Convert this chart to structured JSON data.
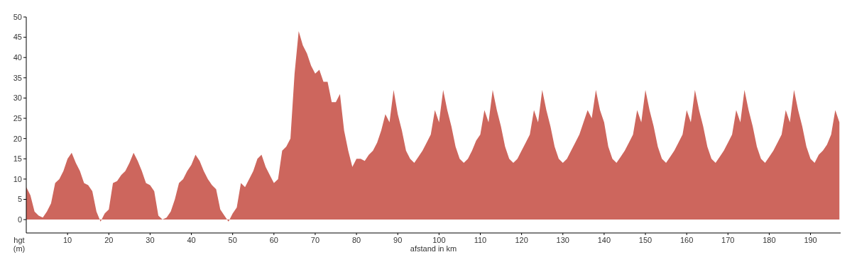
{
  "chart_data": {
    "type": "area",
    "xlabel": "afstand in km",
    "ylabel": "hgt (m)",
    "xlim": [
      0,
      197.3
    ],
    "ylim": [
      -3.3,
      50
    ],
    "xticks": [
      10,
      20,
      30,
      40,
      50,
      60,
      70,
      80,
      90,
      100,
      110,
      120,
      130,
      140,
      150,
      160,
      170,
      180,
      190
    ],
    "yticks": [
      0,
      5,
      10,
      15,
      20,
      25,
      30,
      35,
      40,
      45,
      50
    ],
    "grid": false,
    "series": [
      {
        "color": "#cd665d",
        "x": [
          0,
          1,
          2,
          3,
          4,
          5,
          6,
          7,
          8,
          9,
          10,
          11,
          12,
          13,
          14,
          15,
          16,
          17,
          18,
          19,
          20,
          21,
          22,
          23,
          24,
          25,
          26,
          27,
          28,
          29,
          30,
          31,
          32,
          33,
          34,
          35,
          36,
          37,
          38,
          39,
          40,
          41,
          42,
          43,
          44,
          45,
          46,
          47,
          48,
          49,
          50,
          51,
          52,
          53,
          54,
          55,
          56,
          57,
          58,
          59,
          60,
          61,
          62,
          63,
          64,
          65,
          66,
          67,
          68,
          69,
          70,
          71,
          72,
          73,
          74,
          75,
          76,
          77,
          78,
          79,
          80,
          81,
          82,
          83,
          84,
          85,
          86,
          87,
          88,
          89,
          90,
          91,
          92,
          93,
          94,
          95,
          96,
          97,
          98,
          99,
          100,
          101,
          102,
          103,
          104,
          105,
          106,
          107,
          108,
          109,
          110,
          111,
          112,
          113,
          114,
          115,
          116,
          117,
          118,
          119,
          120,
          121,
          122,
          123,
          124,
          125,
          126,
          127,
          128,
          129,
          130,
          131,
          132,
          133,
          134,
          135,
          136,
          137,
          138,
          139,
          140,
          141,
          142,
          143,
          144,
          145,
          146,
          147,
          148,
          149,
          150,
          151,
          152,
          153,
          154,
          155,
          156,
          157,
          158,
          159,
          160,
          161,
          162,
          163,
          164,
          165,
          166,
          167,
          168,
          169,
          170,
          171,
          172,
          173,
          174,
          175,
          176,
          177,
          178,
          179,
          180,
          181,
          182,
          183,
          184,
          185,
          186,
          187,
          188,
          189,
          190,
          191,
          192,
          193,
          194,
          195,
          196,
          197
        ],
        "values": [
          8,
          6,
          2,
          1,
          0.5,
          2,
          4,
          9,
          10,
          12,
          15,
          16.5,
          14,
          12,
          9,
          8.5,
          7,
          2,
          -0.5,
          1.5,
          2.5,
          9,
          9.5,
          11,
          12,
          14,
          16.5,
          14.5,
          12,
          9,
          8.5,
          7,
          1,
          0,
          0.5,
          2,
          5,
          9,
          10,
          12,
          13.5,
          16,
          14.5,
          12,
          10,
          8.5,
          7.5,
          2.5,
          1,
          -0.5,
          1.5,
          3,
          9,
          8,
          10,
          12,
          15,
          16,
          13,
          11,
          9,
          10,
          17,
          18,
          20,
          36,
          46.5,
          43,
          41,
          38,
          36,
          37,
          34,
          34,
          29,
          29,
          31,
          22,
          17,
          13,
          15,
          15,
          14.5,
          16,
          17,
          19,
          22,
          26,
          24,
          32,
          26,
          22,
          17,
          15,
          14,
          15.5,
          17,
          19,
          21,
          27,
          24,
          32,
          27,
          23,
          18,
          15,
          14,
          15,
          17,
          19.5,
          21,
          27,
          24,
          32,
          27,
          23,
          18,
          15,
          14,
          15,
          17,
          19,
          21,
          27,
          24,
          32,
          27,
          23,
          18,
          15,
          14,
          15,
          17,
          19,
          21,
          24,
          27,
          25,
          32,
          27,
          24,
          18,
          15,
          14,
          15.5,
          17,
          19,
          21,
          27,
          24,
          32,
          27,
          23,
          18,
          15,
          14,
          15.5,
          17,
          19,
          21,
          27,
          24,
          32,
          27,
          23,
          18,
          15,
          14,
          15.5,
          17,
          19,
          21,
          27,
          24,
          32,
          27,
          23,
          18,
          15,
          14,
          15.5,
          17,
          19,
          21,
          27,
          24,
          32,
          27,
          23,
          18,
          15,
          14,
          16,
          17,
          18.5,
          21,
          27,
          24
        ]
      }
    ]
  }
}
